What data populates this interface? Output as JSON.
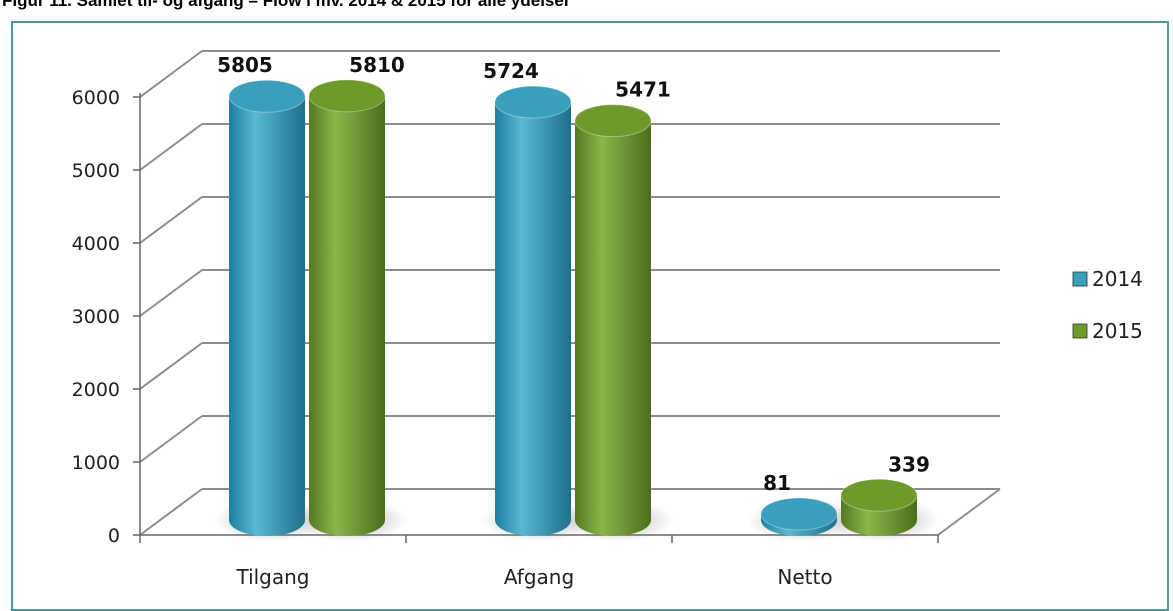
{
  "figure": {
    "title": "Figur 11. Samlet til- og afgang – Flow i mv. 2014 & 2015 for alle ydelser"
  },
  "chart_data": {
    "type": "bar",
    "style": "3d-cylinder",
    "categories": [
      "Tilgang",
      "Afgang",
      "Netto"
    ],
    "series": [
      {
        "name": "2014",
        "values": [
          5805,
          5724,
          81
        ],
        "color": "#3a9fbd"
      },
      {
        "name": "2015",
        "values": [
          5810,
          5471,
          339
        ],
        "color": "#6e9a2c"
      }
    ],
    "y_ticks": [
      "0",
      "1000",
      "2000",
      "3000",
      "4000",
      "5000",
      "6000"
    ],
    "ylim": [
      0,
      6000
    ],
    "grid": true,
    "legend_position": "right",
    "data_labels": true,
    "title": "",
    "xlabel": "",
    "ylabel": ""
  }
}
